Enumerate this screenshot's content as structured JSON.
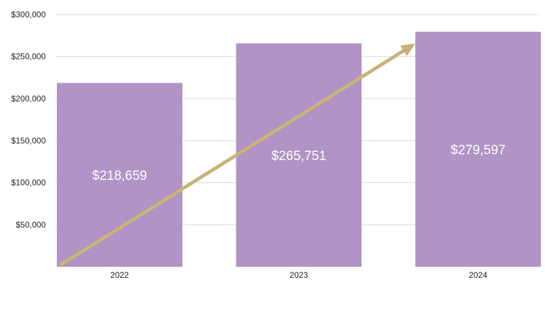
{
  "chart_data": {
    "type": "bar",
    "categories": [
      "2022",
      "2023",
      "2024"
    ],
    "values": [
      218659,
      265751,
      279597
    ],
    "data_labels": [
      "$218,659",
      "$265,751",
      "$279,597"
    ],
    "y_ticks": [
      {
        "value": 50000,
        "label": "$50,000"
      },
      {
        "value": 100000,
        "label": "$100,000"
      },
      {
        "value": 150000,
        "label": "$150,000"
      },
      {
        "value": 200000,
        "label": "$200,000"
      },
      {
        "value": 250000,
        "label": "$250,000"
      },
      {
        "value": 300000,
        "label": "$300,000"
      }
    ],
    "ylim": [
      0,
      300000
    ],
    "grid": true,
    "title": "",
    "xlabel": "",
    "ylabel": "",
    "annotation": {
      "type": "trend-arrow",
      "from_category": "2022",
      "to_category": "2024",
      "direction": "up"
    },
    "colors": {
      "bar": "#b193c6",
      "arrow": "#c8b479",
      "grid": "#d9d9d9",
      "text": "#222222"
    }
  }
}
